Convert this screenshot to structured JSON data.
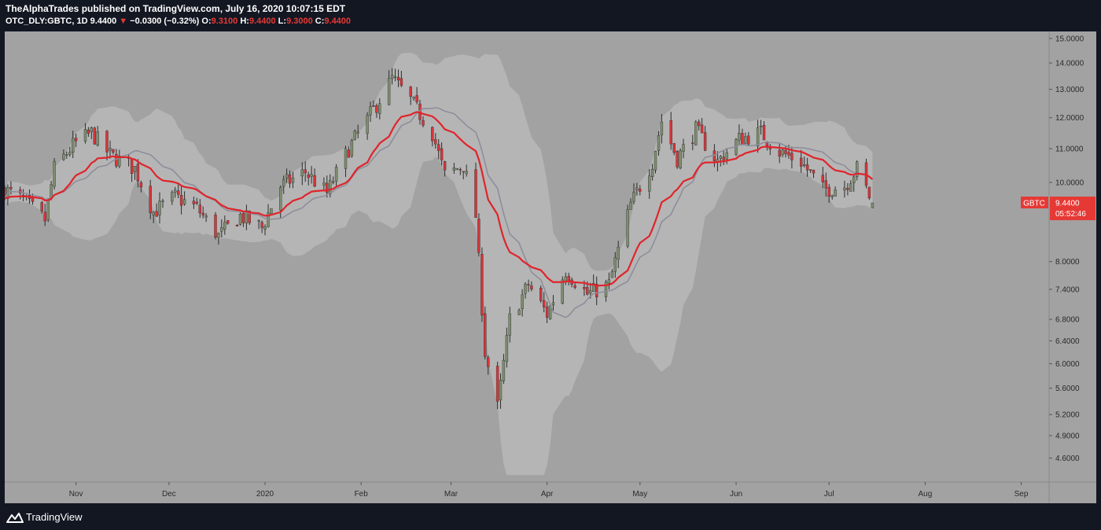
{
  "header": {
    "publish_line": "TheAlphaTrades published on TradingView.com, July 16, 2020 10:07:15 EDT",
    "symbol": "OTC_DLY:GBTC, 1D",
    "last": "9.4400",
    "change_arrow": "▼",
    "change": "−0.0300 (−0.32%)",
    "o_label": "O:",
    "o_value": "9.3100",
    "h_label": "H:",
    "h_value": "9.4400",
    "l_label": "L:",
    "l_value": "9.3000",
    "c_label": "C:",
    "c_value": "9.4400"
  },
  "footer": {
    "brand": "TradingView",
    "logo_icon": "tradingview-logo-icon"
  },
  "colors": {
    "background": "#131722",
    "chart_bg": "#a2a2a2",
    "band_fill": "#b9b9b9",
    "up_candle": "#7d8f6e",
    "down_candle": "#d8353a",
    "ema": "#e0242b",
    "sma": "#8c8c9a",
    "price_tag": "#e53935"
  },
  "chart_data": {
    "type": "candlestick",
    "title": "",
    "xlabel": "",
    "ylabel": "",
    "y_scale": "log",
    "ylim": [
      4.3,
      15.3
    ],
    "y_ticks": [
      "15.0000",
      "14.0000",
      "13.0000",
      "12.0000",
      "11.0000",
      "10.0000",
      "8.0000",
      "7.4000",
      "6.8000",
      "6.4000",
      "6.0000",
      "5.6000",
      "5.2000",
      "4.9000",
      "4.6000"
    ],
    "x_ticks": [
      {
        "date": "2019-11-01",
        "label": "Nov"
      },
      {
        "date": "2019-12-01",
        "label": "Dec"
      },
      {
        "date": "2020-01-01",
        "label": "2020"
      },
      {
        "date": "2020-02-01",
        "label": "Feb"
      },
      {
        "date": "2020-03-01",
        "label": "Mar"
      },
      {
        "date": "2020-04-01",
        "label": "Apr"
      },
      {
        "date": "2020-05-01",
        "label": "May"
      },
      {
        "date": "2020-06-01",
        "label": "Jun"
      },
      {
        "date": "2020-07-01",
        "label": "Jul"
      },
      {
        "date": "2020-08-01",
        "label": "Aug"
      },
      {
        "date": "2020-09-01",
        "label": "Sep"
      }
    ],
    "xlim": [
      "2019-10-09",
      "2020-09-10"
    ],
    "price_label": {
      "symbol": "GBTC",
      "value": "9.4400",
      "countdown": "05:52:46"
    },
    "key_closes": [
      {
        "date": "2019-10-09",
        "close": 9.8
      },
      {
        "date": "2019-10-15",
        "close": 9.5
      },
      {
        "date": "2019-10-22",
        "close": 9.0
      },
      {
        "date": "2019-10-25",
        "close": 10.4
      },
      {
        "date": "2019-10-31",
        "close": 11.1
      },
      {
        "date": "2019-11-06",
        "close": 11.5
      },
      {
        "date": "2019-11-12",
        "close": 10.8
      },
      {
        "date": "2019-11-20",
        "close": 10.4
      },
      {
        "date": "2019-11-26",
        "close": 9.2
      },
      {
        "date": "2019-12-03",
        "close": 9.6
      },
      {
        "date": "2019-12-10",
        "close": 9.3
      },
      {
        "date": "2019-12-17",
        "close": 8.6
      },
      {
        "date": "2019-12-24",
        "close": 9.1
      },
      {
        "date": "2019-12-31",
        "close": 8.8
      },
      {
        "date": "2020-01-06",
        "close": 9.9
      },
      {
        "date": "2020-01-14",
        "close": 10.3
      },
      {
        "date": "2020-01-21",
        "close": 9.7
      },
      {
        "date": "2020-01-28",
        "close": 11.0
      },
      {
        "date": "2020-02-04",
        "close": 12.1
      },
      {
        "date": "2020-02-11",
        "close": 13.4
      },
      {
        "date": "2020-02-17",
        "close": 12.6
      },
      {
        "date": "2020-02-24",
        "close": 11.5
      },
      {
        "date": "2020-02-28",
        "close": 10.2
      },
      {
        "date": "2020-03-05",
        "close": 10.5
      },
      {
        "date": "2020-03-09",
        "close": 9.1
      },
      {
        "date": "2020-03-12",
        "close": 6.2
      },
      {
        "date": "2020-03-16",
        "close": 5.3
      },
      {
        "date": "2020-03-20",
        "close": 6.8
      },
      {
        "date": "2020-03-26",
        "close": 7.5
      },
      {
        "date": "2020-04-01",
        "close": 6.9
      },
      {
        "date": "2020-04-07",
        "close": 7.8
      },
      {
        "date": "2020-04-14",
        "close": 7.3
      },
      {
        "date": "2020-04-21",
        "close": 7.5
      },
      {
        "date": "2020-04-28",
        "close": 9.4
      },
      {
        "date": "2020-05-05",
        "close": 10.6
      },
      {
        "date": "2020-05-08",
        "close": 11.9
      },
      {
        "date": "2020-05-13",
        "close": 10.7
      },
      {
        "date": "2020-05-19",
        "close": 11.6
      },
      {
        "date": "2020-05-26",
        "close": 10.6
      },
      {
        "date": "2020-06-02",
        "close": 11.3
      },
      {
        "date": "2020-06-09",
        "close": 11.5
      },
      {
        "date": "2020-06-15",
        "close": 10.9
      },
      {
        "date": "2020-06-22",
        "close": 10.6
      },
      {
        "date": "2020-06-29",
        "close": 9.8
      },
      {
        "date": "2020-07-06",
        "close": 9.9
      },
      {
        "date": "2020-07-10",
        "close": 10.4
      },
      {
        "date": "2020-07-15",
        "close": 9.44
      }
    ]
  }
}
